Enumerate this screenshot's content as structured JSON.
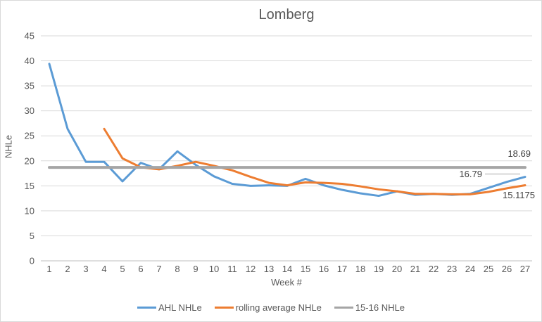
{
  "chart_data": {
    "type": "line",
    "title": "Lomberg",
    "xlabel": "Week #",
    "ylabel": "NHLe",
    "ylim": [
      0,
      45
    ],
    "yticks": [
      0,
      5,
      10,
      15,
      20,
      25,
      30,
      35,
      40,
      45
    ],
    "grid": true,
    "legend_position": "bottom",
    "categories": [
      "1",
      "2",
      "3",
      "4",
      "5",
      "6",
      "7",
      "8",
      "9",
      "10",
      "11",
      "12",
      "13",
      "14",
      "15",
      "16",
      "17",
      "18",
      "19",
      "20",
      "21",
      "22",
      "23",
      "24",
      "25",
      "26",
      "27"
    ],
    "series": [
      {
        "name": "AHL NHLe",
        "color": "#5B9BD5",
        "values": [
          39.4,
          26.4,
          19.8,
          19.8,
          15.9,
          19.6,
          18.3,
          21.9,
          19.2,
          16.9,
          15.4,
          15.0,
          15.1,
          15.0,
          16.4,
          15.1,
          14.2,
          13.5,
          13.0,
          13.9,
          13.2,
          13.4,
          13.2,
          13.4,
          14.6,
          15.8,
          16.79
        ]
      },
      {
        "name": "rolling average NHLe",
        "color": "#ED7D31",
        "values": [
          null,
          null,
          null,
          26.4,
          20.5,
          18.7,
          18.3,
          19.0,
          19.8,
          19.0,
          18.1,
          16.8,
          15.6,
          15.1,
          15.7,
          15.6,
          15.4,
          14.9,
          14.3,
          13.9,
          13.4,
          13.4,
          13.3,
          13.3,
          13.8,
          14.5,
          15.1175
        ]
      },
      {
        "name": "15-16 NHLe",
        "color": "#A5A5A5",
        "constant": 18.69
      }
    ],
    "data_labels": [
      {
        "series": "15-16 NHLe",
        "text": "18.69"
      },
      {
        "series": "AHL NHLe",
        "week": "27",
        "text": "16.79"
      },
      {
        "series": "rolling average NHLe",
        "week": "27",
        "text": "15.1175"
      }
    ],
    "style_colors": {
      "axis_text": "#595959",
      "gridline": "#D9D9D9",
      "axis_line": "#BFBFBF",
      "data_label_text": "#404040"
    }
  }
}
